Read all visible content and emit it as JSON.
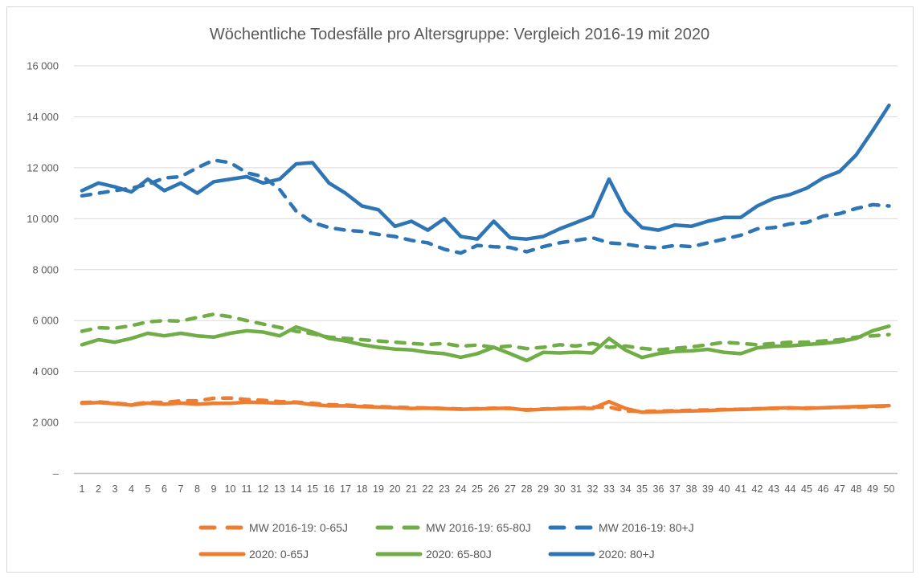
{
  "title": "Wöchentliche Todesfälle pro Altersgruppe: Vergleich 2016-19 mit 2020",
  "colors": {
    "orange": "#ED7D31",
    "green": "#70AD47",
    "blue": "#2E75B6",
    "title_text": "#595959",
    "axis_text": "#595959",
    "gridline": "#D9D9D9",
    "axis_line": "#BFBFBF",
    "border": "#D6D6D6"
  },
  "y_axis": {
    "max": 16000,
    "step": 2000,
    "tick_labels": [
      "16 000",
      "14 000",
      "12 000",
      "10 000",
      "8 000",
      "6 000",
      "4 000",
      "2 000",
      "–"
    ]
  },
  "legend": {
    "rows": [
      [
        0,
        1,
        2
      ],
      [
        3,
        4,
        5
      ]
    ]
  },
  "chart_data": {
    "type": "line",
    "title": "Wöchentliche Todesfälle pro Altersgruppe: Vergleich 2016-19 mit 2020",
    "xlabel": "",
    "ylabel": "",
    "ylim": [
      0,
      16000
    ],
    "grid": "horizontal",
    "legend_position": "bottom",
    "x": [
      1,
      2,
      3,
      4,
      5,
      6,
      7,
      8,
      9,
      10,
      11,
      12,
      13,
      14,
      15,
      16,
      17,
      18,
      19,
      20,
      21,
      22,
      23,
      24,
      25,
      26,
      27,
      28,
      29,
      30,
      31,
      32,
      33,
      34,
      35,
      36,
      37,
      38,
      39,
      40,
      41,
      42,
      43,
      44,
      45,
      46,
      47,
      48,
      49,
      50
    ],
    "series": [
      {
        "name": "MW 2016-19: 0-65J",
        "color_key": "orange",
        "dashed": true,
        "values": [
          2780,
          2810,
          2760,
          2700,
          2800,
          2780,
          2850,
          2850,
          2950,
          2960,
          2900,
          2870,
          2820,
          2800,
          2750,
          2700,
          2680,
          2650,
          2620,
          2600,
          2580,
          2570,
          2550,
          2530,
          2540,
          2560,
          2550,
          2500,
          2530,
          2550,
          2570,
          2600,
          2600,
          2450,
          2430,
          2450,
          2460,
          2480,
          2490,
          2510,
          2520,
          2540,
          2550,
          2560,
          2570,
          2580,
          2590,
          2600,
          2620,
          2640
        ]
      },
      {
        "name": "MW 2016-19: 65-80J",
        "color_key": "green",
        "dashed": true,
        "values": [
          5580,
          5720,
          5700,
          5800,
          5950,
          6000,
          5980,
          6120,
          6250,
          6150,
          6000,
          5860,
          5730,
          5580,
          5480,
          5350,
          5300,
          5250,
          5200,
          5150,
          5100,
          5060,
          5100,
          4990,
          5040,
          4950,
          5000,
          4900,
          4950,
          5050,
          5000,
          5100,
          4950,
          5000,
          4910,
          4850,
          4910,
          4970,
          5050,
          5150,
          5100,
          5050,
          5100,
          5150,
          5150,
          5200,
          5250,
          5350,
          5400,
          5450
        ]
      },
      {
        "name": "MW 2016-19: 80+J",
        "color_key": "blue",
        "dashed": true,
        "values": [
          10900,
          11000,
          11100,
          11200,
          11350,
          11600,
          11650,
          12000,
          12300,
          12200,
          11800,
          11650,
          11150,
          10300,
          9850,
          9650,
          9550,
          9500,
          9380,
          9300,
          9150,
          9050,
          8800,
          8650,
          8950,
          8900,
          8870,
          8700,
          8900,
          9050,
          9150,
          9250,
          9050,
          9000,
          8900,
          8850,
          8950,
          8900,
          9050,
          9200,
          9350,
          9600,
          9650,
          9800,
          9850,
          10100,
          10200,
          10400,
          10550,
          10500
        ]
      },
      {
        "name": "2020: 0-65J",
        "color_key": "orange",
        "dashed": false,
        "values": [
          2750,
          2780,
          2740,
          2680,
          2760,
          2720,
          2760,
          2720,
          2750,
          2750,
          2800,
          2780,
          2760,
          2780,
          2700,
          2650,
          2650,
          2620,
          2600,
          2580,
          2550,
          2560,
          2540,
          2520,
          2530,
          2550,
          2560,
          2480,
          2520,
          2540,
          2560,
          2550,
          2820,
          2550,
          2400,
          2420,
          2440,
          2450,
          2470,
          2500,
          2510,
          2530,
          2560,
          2580,
          2550,
          2580,
          2600,
          2620,
          2640,
          2660
        ]
      },
      {
        "name": "2020: 65-80J",
        "color_key": "green",
        "dashed": false,
        "values": [
          5050,
          5250,
          5150,
          5300,
          5500,
          5400,
          5500,
          5400,
          5350,
          5500,
          5600,
          5550,
          5400,
          5750,
          5550,
          5300,
          5200,
          5050,
          4950,
          4880,
          4850,
          4750,
          4700,
          4560,
          4700,
          4950,
          4700,
          4430,
          4750,
          4730,
          4760,
          4730,
          5300,
          4840,
          4550,
          4700,
          4790,
          4810,
          4870,
          4750,
          4700,
          4930,
          4990,
          5010,
          5060,
          5100,
          5170,
          5300,
          5600,
          5780
        ]
      },
      {
        "name": "2020: 80+J",
        "color_key": "blue",
        "dashed": false,
        "values": [
          11100,
          11400,
          11250,
          11050,
          11550,
          11100,
          11400,
          11000,
          11450,
          11550,
          11650,
          11400,
          11550,
          12150,
          12200,
          11400,
          11000,
          10500,
          10350,
          9700,
          9900,
          9550,
          10000,
          9300,
          9200,
          9900,
          9250,
          9200,
          9300,
          9600,
          9850,
          10100,
          11550,
          10300,
          9650,
          9550,
          9750,
          9700,
          9900,
          10050,
          10050,
          10500,
          10800,
          10950,
          11200,
          11600,
          11850,
          12500,
          13450,
          14450
        ]
      }
    ]
  }
}
